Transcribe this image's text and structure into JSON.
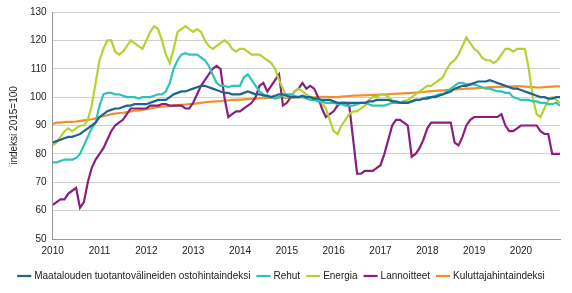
{
  "chart_data": {
    "type": "line",
    "y_label": "indeksi 2015=100",
    "categories": [
      "2010",
      null,
      null,
      null,
      null,
      null,
      null,
      null,
      null,
      null,
      null,
      null,
      "2011",
      null,
      null,
      null,
      null,
      null,
      null,
      null,
      null,
      null,
      null,
      null,
      "2012",
      null,
      null,
      null,
      null,
      null,
      null,
      null,
      null,
      null,
      null,
      null,
      "2013",
      null,
      null,
      null,
      null,
      null,
      null,
      null,
      null,
      null,
      null,
      null,
      "2014",
      null,
      null,
      null,
      null,
      null,
      null,
      null,
      null,
      null,
      null,
      null,
      "2015",
      null,
      null,
      null,
      null,
      null,
      null,
      null,
      null,
      null,
      null,
      null,
      "2016",
      null,
      null,
      null,
      null,
      null,
      null,
      null,
      null,
      null,
      null,
      null,
      "2017",
      null,
      null,
      null,
      null,
      null,
      null,
      null,
      null,
      null,
      null,
      null,
      "2018",
      null,
      null,
      null,
      null,
      null,
      null,
      null,
      null,
      null,
      null,
      null,
      "2019",
      null,
      null,
      null,
      null,
      null,
      null,
      null,
      null,
      null,
      null,
      null,
      "2020",
      null,
      null,
      null,
      null,
      null,
      null,
      null,
      null,
      null,
      null
    ],
    "series": [
      {
        "name": "Maatalouden tuotantovälineiden ostohintaindeksi",
        "color": "#1f6391",
        "values": [
          84,
          84.5,
          85,
          85.5,
          86,
          86,
          86.5,
          87,
          88,
          89,
          90,
          91,
          93,
          94,
          95,
          95.5,
          96,
          96,
          96.5,
          97,
          97,
          97.5,
          97.5,
          97.5,
          97.5,
          98,
          98.5,
          99,
          99,
          99,
          100,
          101,
          101.5,
          102,
          102,
          102.5,
          103,
          103.5,
          104,
          104,
          103.5,
          103,
          102.5,
          102,
          101.5,
          101.5,
          101,
          101,
          101,
          101.5,
          102,
          101.5,
          101,
          101,
          100.5,
          100.5,
          100,
          100.5,
          101,
          101,
          100.5,
          100,
          100,
          100,
          100.5,
          100,
          100,
          99.5,
          99.5,
          99,
          99,
          99,
          98.5,
          98,
          98,
          98,
          98,
          98,
          98,
          98,
          98,
          98.5,
          98.5,
          99,
          99,
          99,
          99,
          98.5,
          98.5,
          98,
          98,
          98,
          98.5,
          99,
          99,
          99.5,
          99.5,
          100,
          100,
          100.5,
          101,
          101.5,
          102,
          103,
          103.5,
          104,
          104,
          104.5,
          105,
          105.5,
          105.5,
          105.5,
          106,
          105.5,
          105,
          104.5,
          104,
          103.5,
          103,
          103,
          102.5,
          102,
          101.5,
          101,
          100.5,
          100,
          100,
          99.5,
          99.5,
          100,
          100
        ]
      },
      {
        "name": "Rehut",
        "color": "#2ec4b6",
        "values": [
          77,
          77,
          77.5,
          78,
          78,
          78,
          78.5,
          80,
          83,
          86,
          89,
          91,
          97,
          101,
          101.5,
          101.5,
          101,
          101,
          100.5,
          100,
          100,
          100,
          99.5,
          100,
          100,
          100,
          100.5,
          101,
          101,
          102,
          105,
          110,
          113,
          115,
          115.5,
          115,
          115,
          115,
          114,
          113,
          111,
          108,
          105,
          104,
          104,
          103.5,
          104,
          104,
          104,
          107,
          108,
          106,
          104,
          102,
          101,
          100,
          100,
          99.5,
          100,
          100.5,
          101,
          101,
          100.5,
          100,
          100,
          99.5,
          99,
          99,
          98.5,
          98.5,
          98,
          98,
          98,
          97.5,
          97.5,
          97,
          97,
          97,
          97.5,
          98,
          98,
          97.5,
          97,
          97,
          97,
          97,
          97.5,
          98,
          98,
          98,
          98.5,
          98,
          98.5,
          99,
          99,
          99.5,
          100,
          100,
          100.5,
          101,
          101,
          102,
          103,
          104,
          105,
          105,
          104.5,
          104.5,
          104.5,
          104,
          103.5,
          103,
          103,
          102.5,
          102,
          102,
          101.5,
          101.5,
          100,
          99.5,
          99,
          99,
          99,
          98.5,
          98.5,
          98,
          98,
          97.5,
          97.5,
          98,
          97
        ]
      },
      {
        "name": "Energia",
        "color": "#b3d334",
        "values": [
          83,
          84,
          86,
          88,
          89,
          88,
          89,
          90,
          90,
          92,
          97,
          105,
          113,
          117,
          120,
          120,
          116,
          115,
          116,
          118,
          120,
          119,
          118,
          117,
          120,
          123,
          125,
          124,
          120,
          115,
          112,
          117,
          123,
          124,
          125,
          124,
          123,
          124,
          123,
          120,
          118,
          117,
          118,
          119,
          120,
          119,
          117,
          116,
          117,
          117,
          116,
          115,
          115,
          115,
          114,
          113,
          112,
          110,
          106,
          103,
          100,
          100,
          102,
          103,
          102,
          101,
          100,
          100,
          99,
          98,
          96,
          92,
          88,
          87,
          90,
          92,
          94,
          95,
          95,
          96,
          97,
          99,
          100,
          100,
          101,
          101,
          100,
          99,
          98,
          98,
          98.5,
          99,
          100,
          101,
          102,
          103,
          104,
          104,
          105,
          106,
          107,
          110,
          112,
          113,
          115,
          118,
          121,
          119,
          117,
          116,
          114,
          113,
          113,
          112,
          113,
          115,
          117,
          117,
          116,
          117,
          117,
          117,
          110,
          100,
          94,
          93,
          96,
          99,
          100,
          99,
          98
        ]
      },
      {
        "name": "Lannoitteet",
        "color": "#8b1e7e",
        "values": [
          62,
          63,
          64,
          64,
          66,
          67,
          68,
          61,
          63,
          70,
          75,
          78,
          80,
          82,
          85,
          88,
          90,
          91,
          92,
          94,
          96,
          96,
          96,
          96,
          96,
          97,
          97,
          97,
          97.5,
          97.5,
          97,
          97,
          97,
          97,
          96,
          96,
          98,
          101,
          104,
          106,
          108,
          110,
          111,
          110,
          100,
          93,
          94,
          95,
          95,
          96,
          97,
          98,
          100,
          104,
          105,
          102,
          104,
          106,
          108,
          97,
          98,
          100,
          102,
          103,
          105,
          103,
          104,
          103,
          100,
          96,
          93,
          94,
          95,
          97,
          98,
          98,
          97,
          85,
          73,
          73,
          74,
          74,
          74,
          75,
          76,
          80,
          85,
          90,
          92,
          92,
          91,
          90,
          79,
          80,
          82,
          85,
          89,
          91,
          91,
          91,
          91,
          91,
          91,
          84,
          83,
          86,
          90,
          92,
          93,
          93,
          93,
          93,
          93,
          93,
          93,
          94,
          90,
          88,
          88,
          89,
          90,
          90,
          90,
          90,
          90,
          88,
          87,
          87,
          80,
          80,
          80
        ]
      },
      {
        "name": "Kuluttajahintaindeksi",
        "color": "#f0902c",
        "values": [
          90.5,
          91,
          91,
          91.2,
          91.3,
          91.3,
          91.4,
          91.6,
          91.8,
          92,
          92.2,
          92.5,
          93,
          93.3,
          93.6,
          94,
          94.2,
          94.4,
          94.5,
          94.7,
          95,
          95.2,
          95.3,
          95.5,
          95.8,
          96,
          96.3,
          96.5,
          96.6,
          96.7,
          96.8,
          97,
          97.2,
          97.3,
          97.4,
          97.5,
          97.6,
          97.8,
          98,
          98.2,
          98.3,
          98.4,
          98.5,
          98.6,
          98.8,
          98.9,
          99,
          99,
          99.1,
          99.2,
          99.3,
          99.4,
          99.5,
          99.6,
          99.6,
          99.7,
          99.8,
          99.8,
          99.9,
          99.9,
          99.7,
          99.8,
          99.9,
          100,
          100,
          100.1,
          100,
          100,
          100,
          100.1,
          100.1,
          100,
          100,
          100,
          100.2,
          100.3,
          100.4,
          100.5,
          100.5,
          100.6,
          100.6,
          100.7,
          100.8,
          100.8,
          100.9,
          101,
          101,
          101.1,
          101.2,
          101.2,
          101.3,
          101.4,
          101.5,
          101.6,
          101.7,
          101.8,
          102,
          102.1,
          102.2,
          102.3,
          102.4,
          102.5,
          102.6,
          102.7,
          102.8,
          102.9,
          103,
          103,
          103.1,
          103.2,
          103.3,
          103.4,
          103.5,
          103.5,
          103.6,
          103.6,
          103.7,
          103.7,
          103.8,
          103.8,
          103.8,
          103.7,
          103.6,
          103.5,
          103.4,
          103.4,
          103.5,
          103.6,
          103.7,
          103.8,
          103.8
        ]
      }
    ],
    "ylim": [
      50,
      130
    ],
    "yticks": [
      50,
      60,
      70,
      80,
      90,
      100,
      110,
      120,
      130
    ],
    "grid": true,
    "legend": "bottom"
  }
}
